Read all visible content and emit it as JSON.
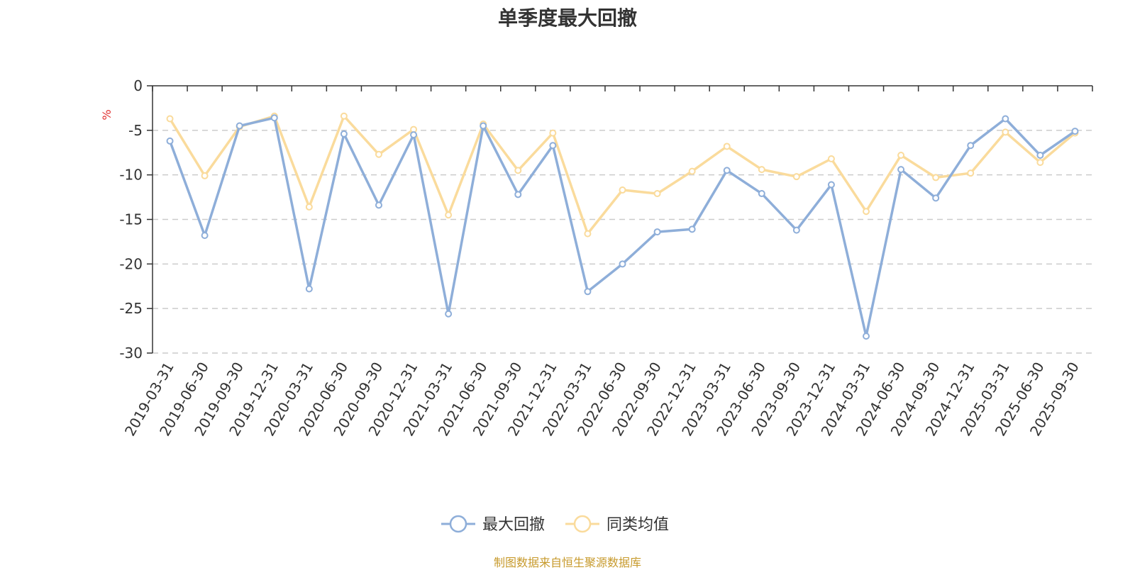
{
  "chart_data": {
    "type": "line",
    "title": "单季度最大回撤",
    "ylabel": "%",
    "ylim": [
      -30,
      0
    ],
    "yticks": [
      0,
      -5,
      -10,
      -15,
      -20,
      -25,
      -30
    ],
    "grid": true,
    "legend_position": "bottom-center",
    "categories": [
      "2019-03-31",
      "2019-06-30",
      "2019-09-30",
      "2019-12-31",
      "2020-03-31",
      "2020-06-30",
      "2020-09-30",
      "2020-12-31",
      "2021-03-31",
      "2021-06-30",
      "2021-09-30",
      "2021-12-31",
      "2022-03-31",
      "2022-06-30",
      "2022-09-30",
      "2022-12-31",
      "2023-03-31",
      "2023-06-30",
      "2023-09-30",
      "2023-12-31",
      "2024-03-31",
      "2024-06-30",
      "2024-09-30",
      "2024-12-31",
      "2025-03-31",
      "2025-06-30",
      "2025-09-30"
    ],
    "series": [
      {
        "name": "最大回撤",
        "color": "#8eaed9",
        "values": [
          -6.2,
          -16.8,
          -4.5,
          -3.6,
          -22.8,
          -5.4,
          -13.4,
          -5.5,
          -25.6,
          -4.5,
          -12.2,
          -6.7,
          -23.1,
          -20.0,
          -16.4,
          -16.1,
          -9.5,
          -12.1,
          -16.2,
          -11.1,
          -28.1,
          -9.4,
          -12.6,
          -6.7,
          -3.7,
          -7.8,
          -5.1
        ]
      },
      {
        "name": "同类均值",
        "color": "#fadb9c",
        "values": [
          -3.7,
          -10.1,
          -4.6,
          -3.4,
          -13.6,
          -3.4,
          -7.7,
          -4.9,
          -14.5,
          -4.3,
          -9.5,
          -5.3,
          -16.6,
          -11.7,
          -12.1,
          -9.6,
          -6.8,
          -9.4,
          -10.2,
          -8.2,
          -14.1,
          -7.8,
          -10.3,
          -9.8,
          -5.2,
          -8.6,
          -5.3
        ]
      }
    ]
  },
  "footer": {
    "source": "制图数据来自恒生聚源数据库"
  }
}
